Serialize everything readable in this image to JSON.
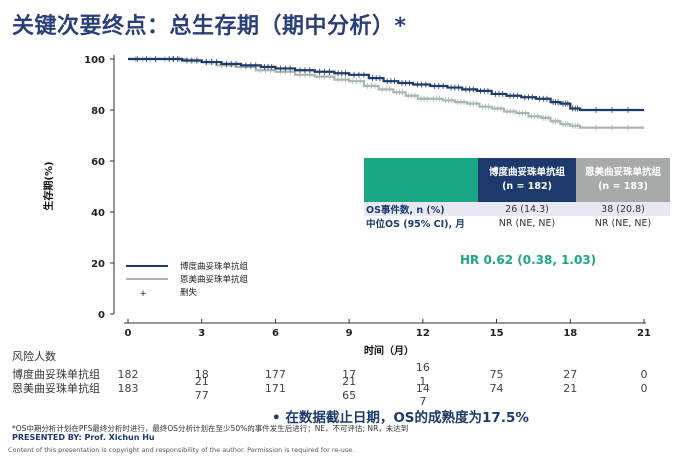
{
  "slide": {
    "title": "关键次要终点：总生存期（期中分析）*"
  },
  "chart_data": {
    "type": "line",
    "subtype": "kaplan-meier",
    "xlabel": "时间（月）",
    "ylabel": "生存期(%)",
    "xlim": [
      0,
      21
    ],
    "ylim": [
      0,
      100
    ],
    "xticks": [
      0,
      3,
      6,
      9,
      12,
      15,
      18,
      21
    ],
    "yticks": [
      0,
      20,
      40,
      60,
      80,
      100
    ],
    "legend": {
      "placement": "bottom-left",
      "entries": [
        "博度曲妥珠单抗组",
        "恩美曲妥珠单抗组",
        "删失"
      ]
    },
    "series": [
      {
        "name": "博度曲妥珠单抗组",
        "color": "#1c3a6b",
        "x": [
          0,
          1.5,
          2.2,
          3,
          3.8,
          4.6,
          5.4,
          6,
          6.8,
          7.6,
          8.4,
          9,
          9.8,
          10.4,
          11,
          11.6,
          12.3,
          13,
          13.6,
          14.2,
          14.8,
          15.4,
          16,
          16.6,
          17.2,
          17.6,
          18,
          18.4,
          21
        ],
        "y": [
          100,
          100,
          99.4,
          98.8,
          98.1,
          97.5,
          96.9,
          96.3,
          95.6,
          95.0,
          94.4,
          93.8,
          92.5,
          91.3,
          90.6,
          90.0,
          89.4,
          88.8,
          88.1,
          87.5,
          86.3,
          85.6,
          85.0,
          84.4,
          83.1,
          82.5,
          80.6,
          80.0,
          80.0
        ]
      },
      {
        "name": "恩美曲妥珠单抗组",
        "color": "#a7b8b0",
        "x": [
          0,
          1.2,
          2.4,
          3,
          3.6,
          4.4,
          5.2,
          6,
          6.8,
          7.6,
          8.4,
          9,
          9.6,
          10.2,
          10.8,
          11.3,
          11.8,
          12.3,
          12.8,
          13.3,
          13.8,
          14.3,
          14.8,
          15.3,
          15.8,
          16.3,
          16.8,
          17.2,
          17.6,
          18,
          18.4,
          21
        ],
        "y": [
          100,
          100,
          99.4,
          98.8,
          97.5,
          96.9,
          95.6,
          95.0,
          93.8,
          93.1,
          91.9,
          91.3,
          89.4,
          88.1,
          86.9,
          85.6,
          84.4,
          84.4,
          83.8,
          83.1,
          82.5,
          81.3,
          80.6,
          79.4,
          78.8,
          77.5,
          76.9,
          75.6,
          74.4,
          73.8,
          73.1,
          73.1
        ]
      }
    ],
    "hazard_ratio": "HR 0.62 (0.38, 1.03)"
  },
  "summary_table": {
    "columns": [
      "",
      "博度曲妥珠单抗组\n(n = 182)",
      "恩美曲妥珠单抗组\n(n = 183)"
    ],
    "rows": [
      [
        "OS事件数, n (%)",
        "26 (14.3)",
        "38 (20.8)"
      ],
      [
        "中位OS (95% CI), 月",
        "NR (NE, NE)",
        "NR (NE, NE)"
      ]
    ]
  },
  "risk_table": {
    "title": "风险人数",
    "rows": [
      {
        "label": "博度曲妥珠单抗组",
        "values": [
          "182",
          "18",
          "177",
          "17",
          "16\n1",
          "75",
          "27",
          "0"
        ]
      },
      {
        "label": "恩美曲妥珠单抗组",
        "values": [
          "183",
          "21\n77",
          "171",
          "21\n65",
          "14",
          "74",
          "21",
          "0"
        ]
      }
    ],
    "stray": [
      "7"
    ]
  },
  "footer": {
    "bullet": "•   在数据截止日期，OS的成熟度为17.5%",
    "footnote": "*OS中期分析计划在PFS最终分析时进行，最终OS分析计划在至少50%的事件发生后进行；NE，不可评估; NR，未达到",
    "presented_by": "PRESENTED BY: Prof. Xichun Hu",
    "copyright": "Content of this presentation is copyright and responsibility of the author. Permission is required for re-use."
  }
}
